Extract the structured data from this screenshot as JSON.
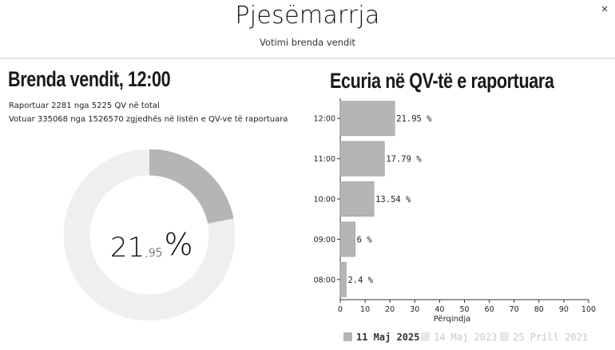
{
  "header": {
    "title": "Pjesëmarrja",
    "subtitle": "Votimi brenda vendit",
    "close_label": "×"
  },
  "left": {
    "heading": "Brenda vendit, 12:00",
    "stat_line1": "Raportuar 2281 nga 5225 QV në total",
    "stat_line2": "Votuar 335068 nga 1526570 zgjedhës në listën e QV-ve të raportuara",
    "percent_int": "21",
    "percent_dec": ",95",
    "percent_sign": "%",
    "percent_value": 21.95
  },
  "right": {
    "heading": "Ecuria në QV-të e raportuara"
  },
  "colors": {
    "bar": "#b5b5b5",
    "donut_fill": "#b5b5b5",
    "donut_track": "#efefef",
    "legend_inactive": "#e8e8e8"
  },
  "chart_data": {
    "type": "bar",
    "orientation": "horizontal",
    "categories": [
      "12:00",
      "11:00",
      "10:00",
      "09:00",
      "08:00"
    ],
    "values": [
      21.95,
      17.79,
      13.54,
      6,
      2.4
    ],
    "value_labels": [
      "21.95 %",
      "17.79 %",
      "13.54 %",
      "6 %",
      "2.4 %"
    ],
    "xlabel": "Përqindja",
    "xlim": [
      0,
      100
    ],
    "xticks": [
      "0",
      "10",
      "20",
      "30",
      "40",
      "50",
      "60",
      "70",
      "80",
      "90",
      "100"
    ],
    "legend": [
      {
        "label": "11 Maj 2025",
        "active": true
      },
      {
        "label": "14 Maj 2023",
        "active": false
      },
      {
        "label": "25 Prill 2021",
        "active": false
      }
    ]
  }
}
